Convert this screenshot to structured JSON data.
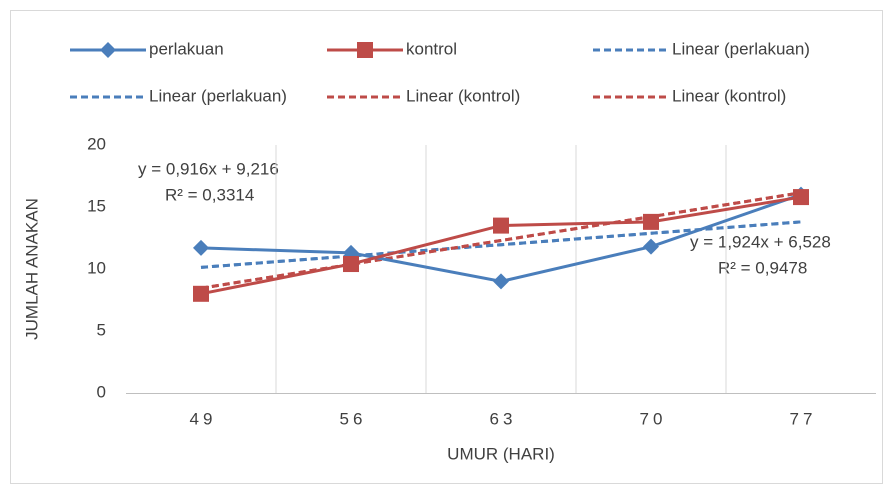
{
  "chart_data": {
    "type": "line",
    "x_label": "UMUR (HARI)",
    "y_label": "JUMLAH ANAKAN",
    "categories": [
      "49",
      "56",
      "63",
      "70",
      "77"
    ],
    "ylim": [
      0,
      20
    ],
    "yticks": [
      0,
      5,
      10,
      15,
      20
    ],
    "grid": "x",
    "legend": "top",
    "series": [
      {
        "name": "perlakuan",
        "color": "#4a7ebb",
        "marker": "diamond",
        "dashed": false,
        "values": [
          11.7,
          11.3,
          9.0,
          11.8,
          16.0
        ]
      },
      {
        "name": "kontrol",
        "color": "#be4b48",
        "marker": "square",
        "dashed": false,
        "values": [
          8.0,
          10.4,
          13.5,
          13.8,
          15.8
        ]
      },
      {
        "name": "Linear (perlakuan)",
        "color": "#4a7ebb",
        "marker": null,
        "dashed": true,
        "values": [
          10.13,
          11.05,
          11.96,
          12.88,
          13.8
        ]
      },
      {
        "name": "Linear (perlakuan)",
        "color": "#4a7ebb",
        "marker": null,
        "dashed": true,
        "values": [
          10.13,
          11.05,
          11.96,
          12.88,
          13.8
        ]
      },
      {
        "name": "Linear (kontrol)",
        "color": "#be4b48",
        "marker": null,
        "dashed": true,
        "values": [
          8.45,
          10.38,
          12.3,
          14.22,
          16.15
        ]
      },
      {
        "name": "Linear (kontrol)",
        "color": "#be4b48",
        "marker": null,
        "dashed": true,
        "values": [
          8.45,
          10.38,
          12.3,
          14.22,
          16.15
        ]
      }
    ],
    "annotations": [
      "y = 0,916x + 9,216",
      "R² = 0,3314",
      "y = 1,924x + 6,528",
      "R² = 0,9478"
    ]
  }
}
